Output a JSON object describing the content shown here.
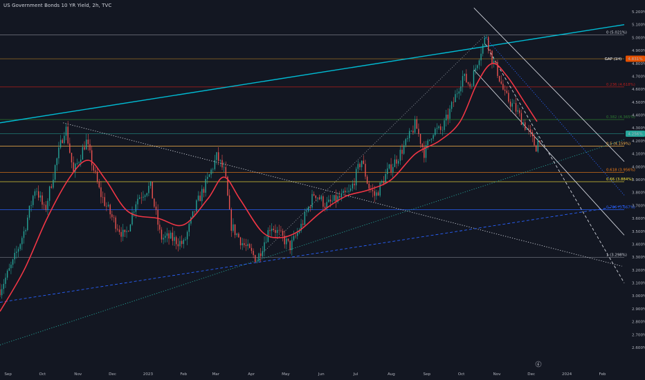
{
  "chart_title": "US Government Bonds 10 YR Yield, 2h, TVC",
  "colors": {
    "background": "#131722",
    "price_up": "#26a69a",
    "price_down": "#ef5350",
    "moving_average": "#f23645",
    "channel": "#00bcd4",
    "axis_text": "#b2b5be",
    "last_price_badge": "#26a69a",
    "gap_badge": "#e65100"
  },
  "chart_data": {
    "type": "candlestick",
    "title": "US Government Bonds 10 YR Yield, 2h, TVC",
    "y_axis": {
      "min": 2.6,
      "max": 5.2,
      "unit": "%",
      "tick_labels": [
        "2.600%",
        "2.700%",
        "2.800%",
        "2.900%",
        "3.000%",
        "3.100%",
        "3.200%",
        "3.300%",
        "3.400%",
        "3.500%",
        "3.600%",
        "3.700%",
        "3.800%",
        "3.900%",
        "4.000%",
        "4.100%",
        "4.200%",
        "4.300%",
        "4.400%",
        "4.500%",
        "4.600%",
        "4.700%",
        "4.800%",
        "4.900%",
        "5.000%",
        "5.100%",
        "5.200%"
      ]
    },
    "x_axis": {
      "tick_labels": [
        "Sep",
        "Oct",
        "Nov",
        "Dec",
        "2023",
        "Feb",
        "Mar",
        "Apr",
        "May",
        "Jun",
        "Jul",
        "Aug",
        "Sep",
        "Oct",
        "Nov",
        "Dec",
        "2024",
        "Feb"
      ]
    },
    "price_path": [
      {
        "t": "2022-08-25",
        "v": 3.05
      },
      {
        "t": "2022-09-05",
        "v": 3.25
      },
      {
        "t": "2022-09-15",
        "v": 3.5
      },
      {
        "t": "2022-09-25",
        "v": 3.85
      },
      {
        "t": "2022-10-03",
        "v": 3.65
      },
      {
        "t": "2022-10-12",
        "v": 4.0
      },
      {
        "t": "2022-10-21",
        "v": 4.32
      },
      {
        "t": "2022-10-28",
        "v": 3.95
      },
      {
        "t": "2022-11-08",
        "v": 4.2
      },
      {
        "t": "2022-11-20",
        "v": 3.8
      },
      {
        "t": "2022-12-01",
        "v": 3.6
      },
      {
        "t": "2022-12-12",
        "v": 3.45
      },
      {
        "t": "2022-12-22",
        "v": 3.75
      },
      {
        "t": "2023-01-03",
        "v": 3.85
      },
      {
        "t": "2023-01-12",
        "v": 3.45
      },
      {
        "t": "2023-01-20",
        "v": 3.45
      },
      {
        "t": "2023-02-01",
        "v": 3.4
      },
      {
        "t": "2023-02-12",
        "v": 3.7
      },
      {
        "t": "2023-02-22",
        "v": 3.9
      },
      {
        "t": "2023-03-02",
        "v": 4.08
      },
      {
        "t": "2023-03-09",
        "v": 3.95
      },
      {
        "t": "2023-03-14",
        "v": 3.55
      },
      {
        "t": "2023-03-25",
        "v": 3.4
      },
      {
        "t": "2023-04-06",
        "v": 3.28
      },
      {
        "t": "2023-04-18",
        "v": 3.55
      },
      {
        "t": "2023-04-28",
        "v": 3.45
      },
      {
        "t": "2023-05-05",
        "v": 3.38
      },
      {
        "t": "2023-05-15",
        "v": 3.55
      },
      {
        "t": "2023-05-26",
        "v": 3.8
      },
      {
        "t": "2023-06-05",
        "v": 3.7
      },
      {
        "t": "2023-06-15",
        "v": 3.75
      },
      {
        "t": "2023-06-26",
        "v": 3.8
      },
      {
        "t": "2023-07-06",
        "v": 4.06
      },
      {
        "t": "2023-07-12",
        "v": 3.85
      },
      {
        "t": "2023-07-18",
        "v": 3.77
      },
      {
        "t": "2023-07-28",
        "v": 3.95
      },
      {
        "t": "2023-08-05",
        "v": 4.05
      },
      {
        "t": "2023-08-15",
        "v": 4.2
      },
      {
        "t": "2023-08-22",
        "v": 4.33
      },
      {
        "t": "2023-08-30",
        "v": 4.1
      },
      {
        "t": "2023-09-06",
        "v": 4.28
      },
      {
        "t": "2023-09-14",
        "v": 4.28
      },
      {
        "t": "2023-09-22",
        "v": 4.45
      },
      {
        "t": "2023-10-02",
        "v": 4.7
      },
      {
        "t": "2023-10-09",
        "v": 4.63
      },
      {
        "t": "2023-10-16",
        "v": 4.85
      },
      {
        "t": "2023-10-23",
        "v": 5.02
      },
      {
        "t": "2023-10-27",
        "v": 4.85
      },
      {
        "t": "2023-11-01",
        "v": 4.75
      },
      {
        "t": "2023-11-08",
        "v": 4.55
      },
      {
        "t": "2023-11-17",
        "v": 4.45
      },
      {
        "t": "2023-11-28",
        "v": 4.28
      },
      {
        "t": "2023-12-05",
        "v": 4.15
      },
      {
        "t": "2023-12-09",
        "v": 4.25
      }
    ],
    "moving_average_path": [
      {
        "t": "2022-08-25",
        "v": 2.88
      },
      {
        "t": "2022-09-15",
        "v": 3.2
      },
      {
        "t": "2022-10-05",
        "v": 3.6
      },
      {
        "t": "2022-10-25",
        "v": 3.92
      },
      {
        "t": "2022-11-10",
        "v": 4.05
      },
      {
        "t": "2022-11-25",
        "v": 3.9
      },
      {
        "t": "2022-12-15",
        "v": 3.65
      },
      {
        "t": "2023-01-10",
        "v": 3.6
      },
      {
        "t": "2023-02-01",
        "v": 3.55
      },
      {
        "t": "2023-02-22",
        "v": 3.75
      },
      {
        "t": "2023-03-08",
        "v": 3.92
      },
      {
        "t": "2023-03-22",
        "v": 3.75
      },
      {
        "t": "2023-04-10",
        "v": 3.5
      },
      {
        "t": "2023-04-25",
        "v": 3.45
      },
      {
        "t": "2023-05-12",
        "v": 3.5
      },
      {
        "t": "2023-06-01",
        "v": 3.65
      },
      {
        "t": "2023-06-22",
        "v": 3.77
      },
      {
        "t": "2023-07-12",
        "v": 3.82
      },
      {
        "t": "2023-08-01",
        "v": 3.9
      },
      {
        "t": "2023-08-22",
        "v": 4.1
      },
      {
        "t": "2023-09-12",
        "v": 4.2
      },
      {
        "t": "2023-09-30",
        "v": 4.35
      },
      {
        "t": "2023-10-15",
        "v": 4.65
      },
      {
        "t": "2023-10-28",
        "v": 4.8
      },
      {
        "t": "2023-11-10",
        "v": 4.7
      },
      {
        "t": "2023-11-25",
        "v": 4.5
      },
      {
        "t": "2023-12-06",
        "v": 4.35
      }
    ],
    "trendlines": [
      {
        "kind": "channel-top",
        "color": "#00bcd4",
        "style": "solid",
        "from": {
          "t": "2022-08-25",
          "v": 4.34
        },
        "to": {
          "t": "2024-02-20",
          "v": 5.1
        }
      },
      {
        "kind": "downtrend",
        "color": "#d1d4dc",
        "style": "dotted",
        "from": {
          "t": "2022-10-19",
          "v": 4.34
        },
        "to": {
          "t": "2024-02-18",
          "v": 3.23
        }
      },
      {
        "kind": "uptrend-support",
        "color": "#26a69a",
        "style": "dotted",
        "from": {
          "t": "2022-08-25",
          "v": 2.62
        },
        "to": {
          "t": "2024-02-20",
          "v": 4.21
        }
      },
      {
        "kind": "support-ray",
        "color": "#2962ff",
        "style": "dashed",
        "from": {
          "t": "2022-08-25",
          "v": 2.95
        },
        "to": {
          "t": "2024-02-20",
          "v": 3.7
        }
      },
      {
        "kind": "regression-channel-upper",
        "color": "#d1d4dc",
        "style": "solid",
        "from": {
          "t": "2023-10-12",
          "v": 5.23
        },
        "to": {
          "t": "2024-02-20",
          "v": 4.04
        }
      },
      {
        "kind": "regression-channel-lower",
        "color": "#d1d4dc",
        "style": "solid",
        "from": {
          "t": "2023-10-12",
          "v": 4.75
        },
        "to": {
          "t": "2024-02-20",
          "v": 3.47
        }
      },
      {
        "kind": "projection",
        "color": "#d1d4dc",
        "style": "dashed",
        "from": {
          "t": "2023-10-22",
          "v": 4.95
        },
        "to": {
          "t": "2024-02-20",
          "v": 3.1
        }
      },
      {
        "kind": "projection",
        "color": "#2962ff",
        "style": "dotted",
        "from": {
          "t": "2023-10-22",
          "v": 5.0
        },
        "to": {
          "t": "2024-02-20",
          "v": 3.78
        }
      },
      {
        "kind": "fib-anchor",
        "color": "#d1d4dc",
        "style": "dotted",
        "from": {
          "t": "2023-04-06",
          "v": 3.29
        },
        "to": {
          "t": "2023-10-22",
          "v": 5.02
        }
      }
    ],
    "horizontal_levels": [
      {
        "label": "0 (5.021%)",
        "value": 5.021,
        "color": "#787b86"
      },
      {
        "label": "0.236 (4.618%)",
        "value": 4.618,
        "color": "#b71c1c"
      },
      {
        "label": "0.382 (4.365%)",
        "value": 4.365,
        "color": "#2e7d32"
      },
      {
        "label": "0.5 (4.159%)",
        "value": 4.159,
        "color": "#ffb74d"
      },
      {
        "label": "0.618 (3.956%)",
        "value": 3.956,
        "color": "#f57f17"
      },
      {
        "label": "0.66 (3.884%)",
        "value": 3.884,
        "color": "#ffeb3b"
      },
      {
        "label": "0.786 (3.667%)",
        "value": 3.667,
        "color": "#2962ff"
      },
      {
        "label": "1 (3.298%)",
        "value": 3.298,
        "color": "#787b86"
      }
    ],
    "extra_levels": [
      {
        "value": 4.255,
        "color": "#26a69a"
      },
      {
        "value": 4.836,
        "color": "#f9a825"
      }
    ],
    "badges": [
      {
        "label": "4.256%",
        "value": 4.256,
        "color": "#26a69a"
      },
      {
        "label": "GAP (1H)",
        "value": 4.836,
        "color": "#131722"
      },
      {
        "label": "4.831%",
        "value": 4.831,
        "color": "#e65100"
      }
    ],
    "grid": false
  }
}
